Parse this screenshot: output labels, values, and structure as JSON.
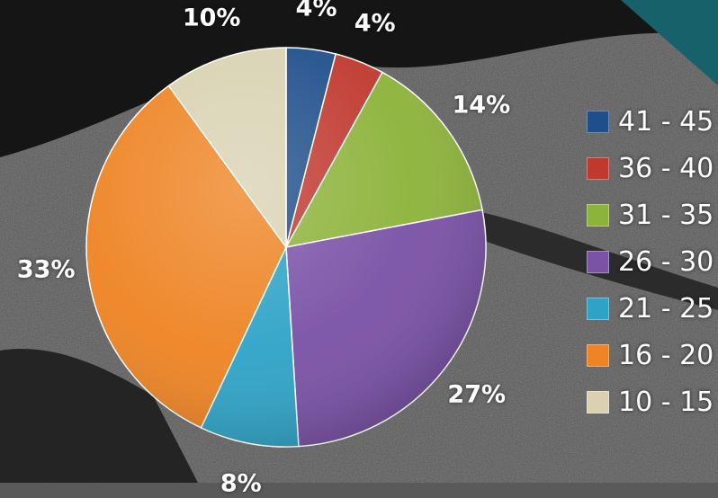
{
  "chart_data": {
    "type": "pie",
    "title": "",
    "start_angle_deg": 0,
    "direction": "clockwise",
    "legend_position": "right",
    "slices": [
      {
        "label": "41 - 45",
        "value": 4,
        "display": "4%",
        "color": "#1f4e8c"
      },
      {
        "label": "36 - 40",
        "value": 4,
        "display": "4%",
        "color": "#c0392f"
      },
      {
        "label": "31 - 35",
        "value": 14,
        "display": "14%",
        "color": "#8db33a"
      },
      {
        "label": "26 - 30",
        "value": 27,
        "display": "27%",
        "color": "#7a52a6"
      },
      {
        "label": "21 - 25",
        "value": 8,
        "display": "8%",
        "color": "#2fa3c7"
      },
      {
        "label": "16 - 20",
        "value": 33,
        "display": "33%",
        "color": "#ee8424"
      },
      {
        "label": "10 - 15",
        "value": 10,
        "display": "10%",
        "color": "#d9d2b2"
      }
    ]
  }
}
